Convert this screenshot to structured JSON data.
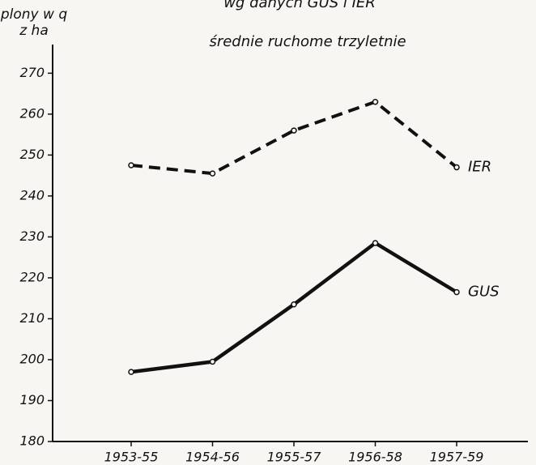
{
  "chart_data": {
    "type": "line",
    "title": "wg danych GUS i IER",
    "subtitle": "średnie ruchome trzyletnie",
    "y_label": [
      "plony w q",
      "z ha"
    ],
    "categories": [
      "1953-55",
      "1954-56",
      "1955-57",
      "1956-58",
      "1957-59"
    ],
    "series": [
      {
        "name": "IER",
        "color": "#111111",
        "line_style": "dashed",
        "values": [
          247.5,
          245.5,
          256,
          263,
          247
        ]
      },
      {
        "name": "GUS",
        "color": "#111111",
        "line_style": "solid",
        "values": [
          197,
          199.5,
          213.5,
          228.5,
          216.5
        ]
      }
    ],
    "ylim": [
      180,
      277
    ],
    "yticks": [
      180,
      190,
      200,
      210,
      220,
      230,
      240,
      250,
      260,
      270
    ],
    "grid": false
  }
}
